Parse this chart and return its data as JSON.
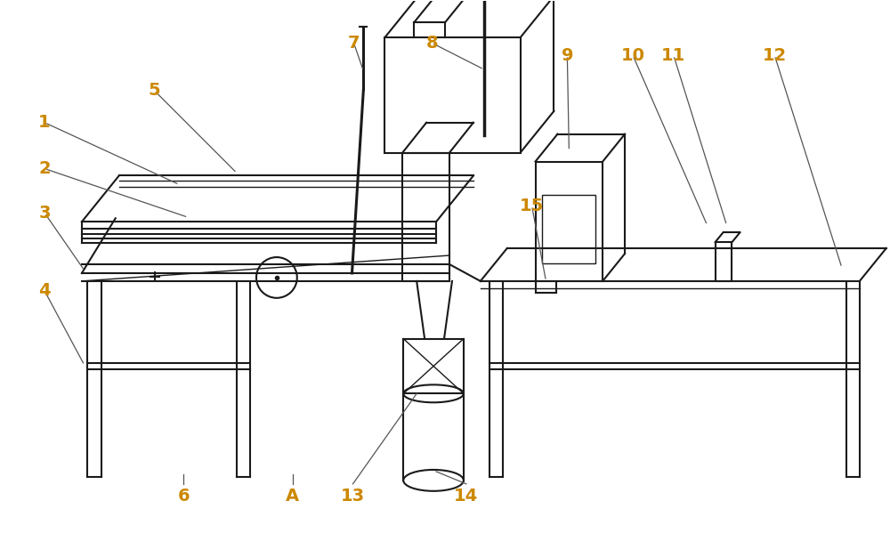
{
  "bg_color": "#ffffff",
  "line_color": "#1a1a1a",
  "label_color": "#cc8800",
  "leader_color": "#555555",
  "lw_main": 1.5,
  "lw_thin": 1.0,
  "label_fontsize": 14,
  "fig_width": 10.0,
  "fig_height": 5.99,
  "fig_dpi": 100
}
